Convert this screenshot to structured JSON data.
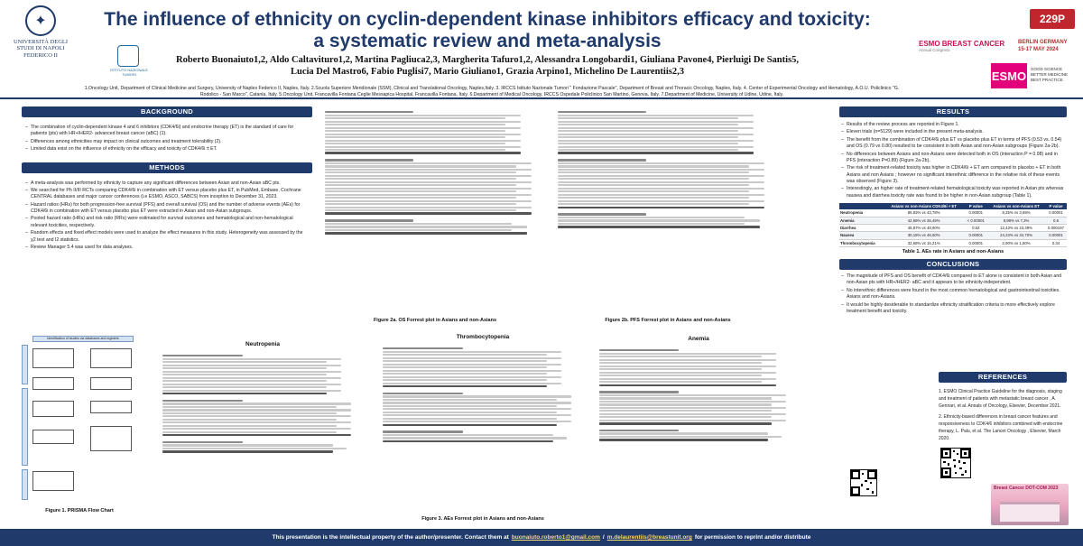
{
  "header": {
    "poster_id": "229P",
    "title_line1": "The influence of ethnicity on cyclin-dependent kinase inhibitors efficacy and toxicity:",
    "title_line2": "a systematic review and meta-analysis",
    "authors_line1": "Roberto Buonaiuto1,2, Aldo Caltavituro1,2, Martina Pagliuca2,3, Margherita Tafuro1,2, Alessandra Longobardi1, Giuliana Pavone4, Pierluigi De Santis5,",
    "authors_line2": "Lucia Del Mastro6, Fabio Puglisi7, Mario Giuliano1, Grazia Arpino1, Michelino De Laurentiis2,3",
    "affiliations": "1.Oncology Unit, Department of Clinical Medicine and Surgery, University of Naples Federico II, Naples, Italy. 2.Scuola Superiore Meridionale (SSM), Clinical and Translational Oncology, Naples,Italy. 3. IRCCS Istituto Nazionale Tumori \" Fondazione Pascale\", Department of Breast and Thoracic Oncology, Naples, Italy. 4. Center of Experimental Oncology and Hematology, A.O.U. Policlinico \"G. Rodolico - San Marco\", Catania, Italy. 5.Oncology Unit, Francavilla Fontana Ceglie Messapica Hospital, Francavilla Fontana, Italy. 6.Department of Medical Oncology, IRCCS Ospedale Policlinico San Martino, Genova, Italy. 7.Department of Medicine, University of Udine, Udine, Italy.",
    "university": "UNIVERSITÀ DEGLI STUDI DI NAPOLI FEDERICO II",
    "irccs": "ISTITUTO NAZIONALE TUMORI",
    "congress": "ESMO BREAST CANCER",
    "congress_sub": "Annual Congress",
    "congress_place": "BERLIN GERMANY",
    "congress_date": "15-17 MAY 2024",
    "esmo_logo": "ESMO",
    "esmo_tagline": [
      "GOOD SCIENCE",
      "BETTER MEDICINE",
      "BEST PRACTICE"
    ]
  },
  "background": {
    "heading": "BACKGROUND",
    "bullets": [
      "The combination of cyclin-dependent kinase 4 and 6 inhibitors (CDK4/6i) and endocrine therapy (ET) is the standard of care for patients (pts) with HR+/HER2- advanced breast cancer (aBC) (1).",
      "Differences among ethnicities may impact on clinical outcomes and treatment tolerability (2).",
      "Limited data exist on the influence of ethnicity on the efficacy and toxicity of CDK4/6i ± ET."
    ]
  },
  "methods": {
    "heading": "METHODS",
    "bullets": [
      "A meta-analysis was performed by ethnicity to capture any significant differences between Asian and non-Asian aBC pts.",
      "We searched for Ph II/III RCTs comparing CDK4/6i in combination with ET versus placebo plus ET, in PubMed, Embase, Cochrane CENTRAL databases and major cancer conferences (i.e ESMO, ASCO, SABCS) from inception to December 31, 2023.",
      "Hazard ratios (HRs) for both progression-free survival (PFS) and overall survival (OS) and the number of adverse events (AEs) for CDK4/6i in combination with ET versus placebo plus ET were extracted in Asian and non-Asian subgroups.",
      "Pooled hazard ratio (HRs) and risk ratio (RRs) were estimated for survival outcomes and hematological and non-hematological relevant toxicities, respectively.",
      "Random effects and fixed effect models were used to analyze the effect measures in this study. Heterogeneity was assessed by the χ2 test and I2 statistics.",
      "Review Manager 5.4 was used for data analyses."
    ]
  },
  "figures": {
    "fig1": "Figure 1. PRISMA Flow Chart",
    "fig2a": "Figure 2a. OS Forrest plot in Asians and non-Asians",
    "fig2b": "Figure 2b. PFS Forrest plot in Asians and non-Asians",
    "fig3": "Figure 3. AEs Forrest plot in Asians and non-Asians",
    "plot_neutropenia": "Neutropenia",
    "plot_thrombocytopenia": "Thrombocytopenia",
    "plot_anemia": "Anemia",
    "prisma_header": "Identification of studies via databases and registers"
  },
  "results": {
    "heading": "RESULTS",
    "bullets": [
      "Results of the review process are reported in Figure 1.",
      "Eleven trials (n=5129) were included in the present meta-analysis.",
      "The benefit from the combination of CDK4/6i plus ET vs placebo plus ET in terms of PFS (0.53 vs. 0.54) and OS (0.79 vs 0.80) resulted to be consistent in both Asian and non-Asian subgroups (Figure 2a-2b).",
      "No differences between Asians and non-Asians were detected both in OS (interaction P = 0.98) and in PFS (interaction P=0.89) (Figure 2a-2b).",
      "The risk of treatment-related toxicity was higher in CDK4/6i + ET arm compared to placebo + ET in both Asians and non Asians ; however no significant interethnic difference in the relative risk of these events was observed (Figure 3).",
      "Interestingly, an higher rate of treatment-related hematological toxicity was reported in Asian pts whereas nausea and diarrhea toxicity rate was found to be higher in non-Asian subgroup (Table 1)."
    ]
  },
  "ae_table": {
    "caption": "Table 1. AEs rate in Asians and non-Asians",
    "columns": [
      "",
      "Asians vs non-Asians CDK4/6i + ET",
      "P value",
      "Asians vs non-Asians ET",
      "P value"
    ],
    "rows": [
      [
        "Neutropenia",
        "86,83% vs 43,78%",
        "0.00001",
        "9,25% vs 3,69%",
        "0.00001"
      ],
      [
        "Anemia",
        "42,66% vs 26,45%",
        "< 0.00001",
        "8,98% vs 7,3%",
        "0.6"
      ],
      [
        "Diarrhea",
        "45,87% vs 48,90%",
        "0.62",
        "12,43% vs 23,49%",
        "0.000197"
      ],
      [
        "Nausea",
        "30,15% vs 46,50%",
        "0.00001",
        "24,23% vs 34,70%",
        "0.00001"
      ],
      [
        "Thrombocytopenia",
        "32,68% vs 15,21%",
        "0.00001",
        "2,90% vs 1,60%",
        "0.34"
      ]
    ]
  },
  "conclusions": {
    "heading": "CONCLUSIONS",
    "bullets": [
      "The magnitude of PFS and OS benefit of CDK4/6i compared to ET alone is consistent in both Asian and non-Asian pts with HR+/HER2- aBC and it appears to be ethnicity-independent.",
      "No interethnic differences were found in the most common hematological and gastrointestinal toxicities. Asians and non-Asians.",
      "It would be highly desiderable to standardize ethnicity stratification criteria to more effectively explore treatment benefit and toxicity."
    ]
  },
  "references": {
    "heading": "REFERENCES",
    "items": [
      "1. ESMO Clinical Practice Guideline for the diagnosis, staging and treatment of patients with metastatic breast cancer , A. Gennari, et al. Annals of Oncology, Elsevier, December 2021.",
      "2. Ethnicity-based differences in breast cancer features and responsiveness to CDK4/6 inhibitors combined with endocrine therapy, L. Palu, et al. The Lancet Oncology , Elsevier, March 2020."
    ],
    "banner": "Breast Cancer DOT-COM 2023"
  },
  "footer": {
    "prefix": "This presentation is the intellectual property of the author/presenter. Contact them at",
    "email1": "buonaiuto.roberto1@gmail.com",
    "middle": "/",
    "email2": "m.delaurentiis@breastunit.org",
    "suffix": "for permission to reprint and/or distribute"
  },
  "colors": {
    "navy": "#1f3a6b",
    "red": "#c0262d",
    "magenta": "#e2007a"
  }
}
